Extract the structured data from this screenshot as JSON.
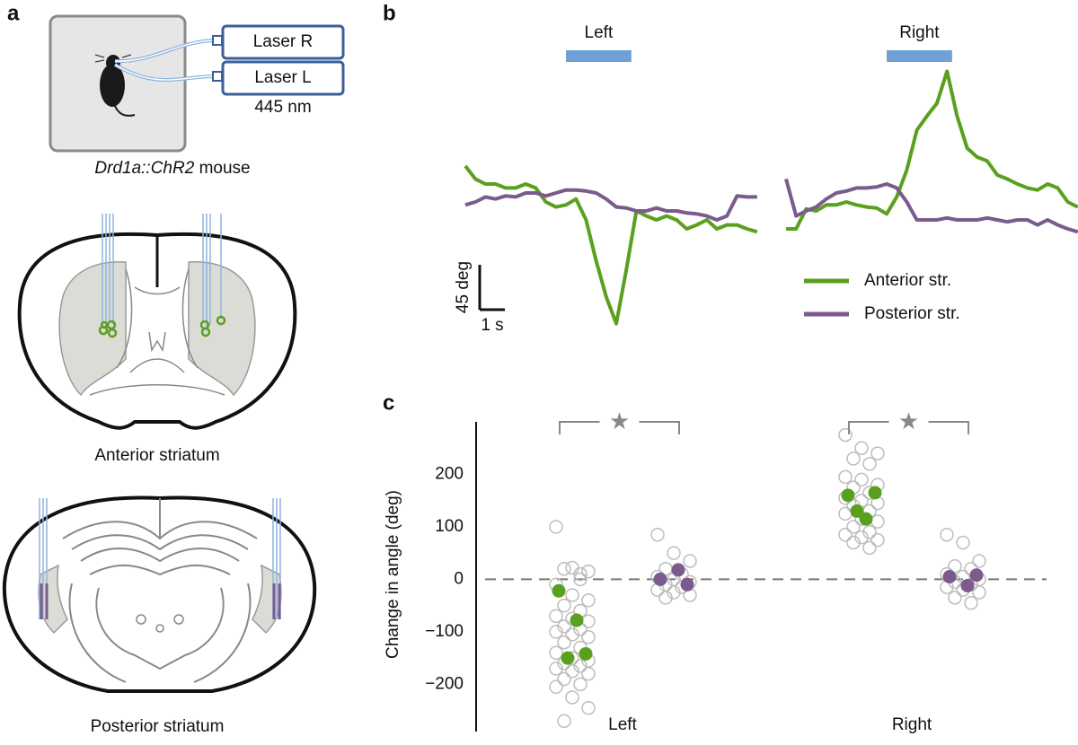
{
  "panel_labels": [
    "a",
    "b",
    "c"
  ],
  "setup": {
    "laser_r": "Laser R",
    "laser_l": "Laser L",
    "wavelength": "445 nm",
    "genotype": "Drd1a::ChR2",
    "animal": "mouse",
    "anterior": "Anterior striatum",
    "posterior": "Posterior striatum"
  },
  "chart_data": [
    {
      "type": "line",
      "stimuli": [
        "Left",
        "Right"
      ],
      "stimulus": [
        0,
        2.6
      ],
      "scalebar": {
        "y": 45,
        "y_label": "45 deg",
        "x": 1,
        "x_label": "1 s"
      },
      "x": [
        -4.0,
        -3.6,
        -3.2,
        -2.8,
        -2.4,
        -2.0,
        -1.6,
        -1.2,
        -0.8,
        -0.4,
        0.0,
        0.4,
        0.8,
        1.2,
        1.6,
        2.0,
        2.4,
        2.8,
        3.2,
        3.6,
        4.0,
        4.4,
        4.8,
        5.2,
        5.6,
        6.0,
        6.4,
        6.8,
        7.2,
        7.6
      ],
      "series": [
        {
          "name": "Anterior str.",
          "color": "#5aa01e",
          "values": [
            [
              36,
              23,
              18,
              18,
              14,
              14,
              18,
              14,
              0,
              -5,
              -3,
              3,
              -18,
              -59,
              -95,
              -122,
              -68,
              -9,
              -14,
              -18,
              -14,
              -18,
              -27,
              -23,
              -18,
              -27,
              -23,
              -23,
              -27,
              -30
            ],
            [
              -27,
              -27,
              -7,
              -9,
              -3,
              -3,
              0,
              -3,
              -5,
              -6,
              -12,
              5,
              32,
              72,
              86,
              99,
              131,
              86,
              54,
              45,
              41,
              27,
              23,
              18,
              14,
              12,
              18,
              14,
              0,
              -5
            ]
          ]
        },
        {
          "name": "Posterior str.",
          "color": "#7b5a8c",
          "values": [
            [
              -3,
              0,
              5,
              3,
              6,
              5,
              9,
              9,
              6,
              9,
              12,
              12,
              11,
              9,
              3,
              -5,
              -6,
              -9,
              -9,
              -6,
              -9,
              -9,
              -11,
              -12,
              -14,
              -18,
              -14,
              6,
              5,
              5
            ],
            [
              23,
              -14,
              -9,
              -5,
              3,
              9,
              11,
              14,
              14,
              15,
              18,
              14,
              0,
              -18,
              -18,
              -18,
              -16,
              -18,
              -18,
              -18,
              -16,
              -18,
              -20,
              -18,
              -18,
              -23,
              -18,
              -23,
              -27,
              -30
            ]
          ]
        }
      ]
    },
    {
      "type": "scatter",
      "ylabel": "Change in angle (deg)",
      "categories": [
        "Left",
        "Right"
      ],
      "ylim": [
        -290,
        300
      ],
      "yticks": [
        {
          "value": -200,
          "label": "−200"
        },
        {
          "value": -100,
          "label": "−100"
        },
        0,
        100,
        200
      ],
      "reference_line": 0,
      "annotations": [
        "★",
        "★"
      ],
      "trial_color": "#bdbdbd",
      "series": [
        {
          "color": "#5aa01e",
          "values": [
            [
              -22,
              -142,
              -78,
              -150
            ],
            [
              160,
              165,
              115,
              130
            ]
          ],
          "trials": [
            [
              100,
              22,
              15,
              20,
              10,
              -10,
              -30,
              -40,
              -50,
              -60,
              -70,
              -75,
              -80,
              -90,
              -95,
              -100,
              -105,
              -110,
              -120,
              -130,
              -140,
              -150,
              -155,
              -160,
              -165,
              -170,
              -175,
              -180,
              -190,
              -200,
              -205,
              -225,
              -245,
              -270,
              0
            ],
            [
              275,
              250,
              240,
              230,
              220,
              195,
              190,
              180,
              175,
              165,
              155,
              150,
              145,
              140,
              130,
              125,
              115,
              110,
              100,
              90,
              85,
              80,
              75,
              70,
              60
            ]
          ]
        },
        {
          "color": "#7b5a8c",
          "values": [
            [
              0,
              -10,
              18
            ],
            [
              5,
              8,
              -12
            ]
          ],
          "trials": [
            [
              85,
              50,
              35,
              20,
              10,
              5,
              0,
              -5,
              -10,
              -15,
              -20,
              -25,
              -30,
              -35
            ],
            [
              85,
              70,
              35,
              25,
              20,
              10,
              5,
              0,
              -5,
              -10,
              -15,
              -20,
              -25,
              -35,
              -45
            ]
          ]
        }
      ]
    }
  ]
}
